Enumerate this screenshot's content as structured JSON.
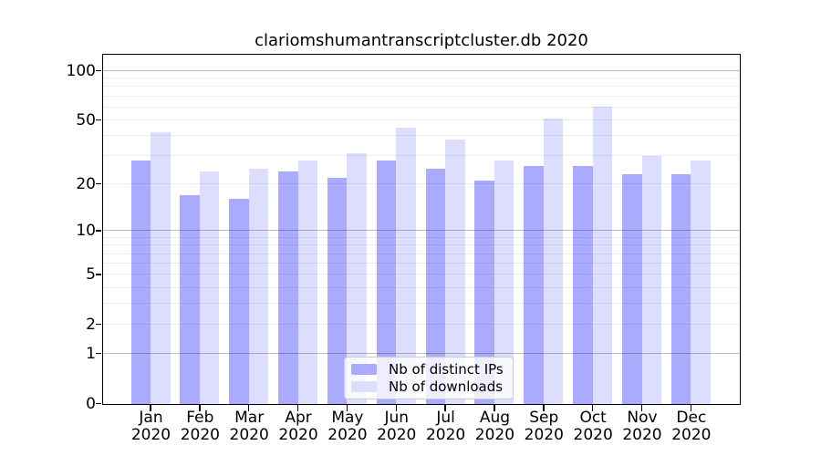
{
  "title": "clariomshumantranscriptcluster.db 2020",
  "year_label": "2020",
  "colors": {
    "distinct_ips": "#aaaaff",
    "downloads": "#ddddff",
    "axis": "#000000",
    "background": "#ffffff"
  },
  "legend": {
    "items": [
      {
        "label": "Nb of distinct IPs",
        "color": "#aaaaff"
      },
      {
        "label": "Nb of downloads",
        "color": "#ddddff"
      }
    ]
  },
  "y_axis": {
    "tick_labels": [
      "100",
      "50",
      "20",
      "10",
      "5",
      "2",
      "1",
      "0"
    ],
    "tick_values": [
      100,
      50,
      20,
      10,
      5,
      2,
      1,
      0
    ]
  },
  "chart_data": {
    "type": "bar",
    "title": "clariomshumantranscriptcluster.db 2020",
    "categories": [
      "Jan 2020",
      "Feb 2020",
      "Mar 2020",
      "Apr 2020",
      "May 2020",
      "Jun 2020",
      "Jul 2020",
      "Aug 2020",
      "Sep 2020",
      "Oct 2020",
      "Nov 2020",
      "Dec 2020"
    ],
    "months": [
      "Jan",
      "Feb",
      "Mar",
      "Apr",
      "May",
      "Jun",
      "Jul",
      "Aug",
      "Sep",
      "Oct",
      "Nov",
      "Dec"
    ],
    "series": [
      {
        "name": "Nb of distinct IPs",
        "color": "#aaaaff",
        "values": [
          28,
          17,
          16,
          24,
          22,
          28,
          25,
          21,
          26,
          26,
          23,
          23
        ]
      },
      {
        "name": "Nb of downloads",
        "color": "#ddddff",
        "values": [
          42,
          24,
          25,
          28,
          31,
          45,
          38,
          28,
          51,
          60,
          30,
          28
        ]
      }
    ],
    "xlabel": "",
    "ylabel": "",
    "yscale": "log1p",
    "ylim": [
      0,
      126
    ],
    "yticks": [
      0,
      1,
      2,
      5,
      10,
      20,
      50,
      100
    ],
    "minor_gridlines": [
      2,
      3,
      4,
      5,
      6,
      7,
      8,
      9,
      20,
      30,
      40,
      50,
      60,
      70,
      80,
      90
    ],
    "major_gridlines": [
      1,
      10,
      100
    ],
    "grid": true,
    "legend_position": "lower center"
  }
}
